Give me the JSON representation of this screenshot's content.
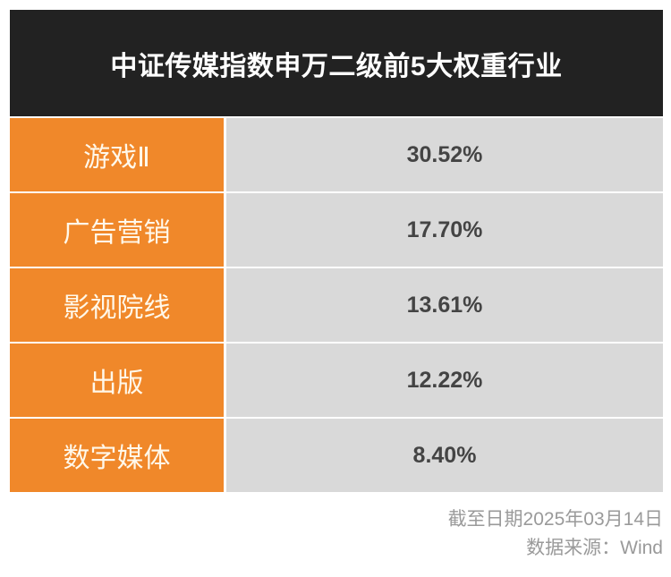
{
  "title": "中证传媒指数申万二级前5大权重行业",
  "rows": [
    {
      "label": "游戏Ⅱ",
      "value": "30.52%"
    },
    {
      "label": "广告营销",
      "value": "17.70%"
    },
    {
      "label": "影视院线",
      "value": "13.61%"
    },
    {
      "label": "出版",
      "value": "12.22%"
    },
    {
      "label": "数字媒体",
      "value": "8.40%"
    }
  ],
  "footer": {
    "date_note": "截至日期2025年03月14日",
    "source": "数据来源：Wind"
  },
  "colors": {
    "header_bg": "#222222",
    "label_bg": "#f0882a",
    "value_bg": "#d9d9d9"
  },
  "chart_data": {
    "type": "table",
    "title": "中证传媒指数申万二级前5大权重行业",
    "categories": [
      "游戏Ⅱ",
      "广告营销",
      "影视院线",
      "出版",
      "数字媒体"
    ],
    "values": [
      30.52,
      17.7,
      13.61,
      12.22,
      8.4
    ],
    "unit": "%",
    "annotations": [
      "截至日期2025年03月14日",
      "数据来源：Wind"
    ]
  }
}
